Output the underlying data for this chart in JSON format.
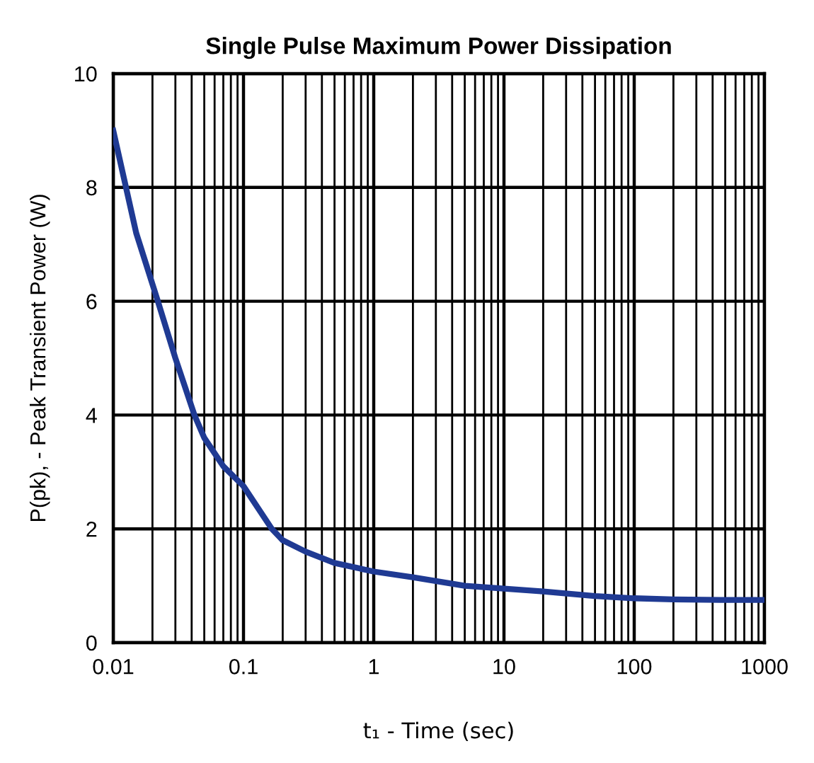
{
  "chart_data": {
    "type": "line",
    "title": "Single Pulse Maximum Power Dissipation",
    "xlabel": "t₁ - Time (sec)",
    "ylabel": "P(pk), - Peak Transient Power (W)",
    "log": "x",
    "grid": true,
    "xlim": [
      0.01,
      1000
    ],
    "xticks": [
      0.01,
      0.1,
      1,
      10,
      100,
      1000
    ],
    "ylim": [
      0,
      10
    ],
    "yticks": [
      0,
      2,
      4,
      6,
      8,
      10
    ],
    "series": [
      {
        "color": "#1f3a93",
        "x": [
          0.01,
          0.015,
          0.022,
          0.03,
          0.042,
          0.05,
          0.07,
          0.1,
          0.165,
          0.2,
          0.3,
          0.5,
          1,
          2,
          5,
          10,
          20,
          50,
          100,
          200,
          500,
          1000
        ],
        "values": [
          9.0,
          7.2,
          6.0,
          5.0,
          4.0,
          3.6,
          3.1,
          2.75,
          2.0,
          1.8,
          1.6,
          1.4,
          1.25,
          1.15,
          1.0,
          0.95,
          0.9,
          0.82,
          0.78,
          0.76,
          0.75,
          0.75
        ]
      }
    ]
  }
}
